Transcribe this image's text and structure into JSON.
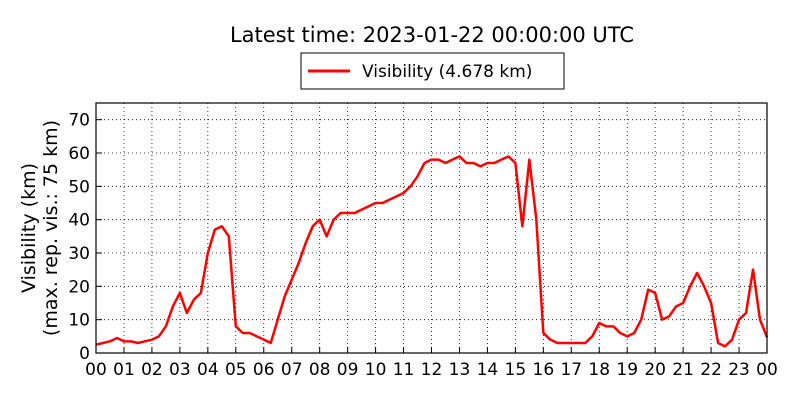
{
  "chart_data": {
    "type": "line",
    "title": "Latest time: 2023-01-22 00:00:00 UTC",
    "ylabel": [
      "Visibility (km)",
      "(max. rep. vis.: 75 km)"
    ],
    "x": [
      0,
      0.25,
      0.5,
      0.75,
      1,
      1.25,
      1.5,
      1.75,
      2,
      2.25,
      2.5,
      2.75,
      3,
      3.25,
      3.5,
      3.75,
      4,
      4.25,
      4.5,
      4.75,
      5,
      5.25,
      5.5,
      5.75,
      6,
      6.25,
      6.5,
      6.75,
      7,
      7.25,
      7.5,
      7.75,
      8,
      8.25,
      8.5,
      8.75,
      9,
      9.25,
      9.5,
      9.75,
      10,
      10.25,
      10.5,
      10.75,
      11,
      11.25,
      11.5,
      11.75,
      12,
      12.25,
      12.5,
      12.75,
      13,
      13.25,
      13.5,
      13.75,
      14,
      14.25,
      14.5,
      14.75,
      15,
      15.25,
      15.5,
      15.75,
      16,
      16.25,
      16.5,
      16.75,
      17,
      17.25,
      17.5,
      17.75,
      18,
      18.25,
      18.5,
      18.75,
      19,
      19.25,
      19.5,
      19.75,
      20,
      20.25,
      20.5,
      20.75,
      21,
      21.25,
      21.5,
      21.75,
      22,
      22.25,
      22.5,
      22.75,
      23,
      23.25,
      23.5,
      23.75,
      24
    ],
    "series": [
      {
        "name": "Visibility (4.678 km)",
        "color": "#ff0000",
        "values": [
          2.5,
          3,
          3.5,
          4.5,
          3.5,
          3.5,
          3,
          3.5,
          4,
          5,
          8,
          14,
          18,
          12,
          16,
          18,
          30,
          37,
          38,
          35,
          8,
          6,
          6,
          5,
          4,
          3,
          10,
          17,
          22,
          27,
          33,
          38,
          40,
          35,
          40,
          42,
          42,
          42,
          43,
          44,
          45,
          45,
          46,
          47,
          48,
          50,
          53,
          57,
          58,
          58,
          57,
          58,
          59,
          57,
          57,
          56,
          57,
          57,
          58,
          59,
          57,
          38,
          58,
          40,
          6,
          4,
          3,
          3,
          3,
          3,
          3,
          5,
          9,
          8,
          8,
          6,
          5,
          6,
          10,
          19,
          18,
          10,
          11,
          14,
          15,
          20,
          24,
          20,
          15,
          3,
          2,
          4,
          10,
          12,
          25,
          10,
          4.7
        ]
      }
    ],
    "xlim": [
      0,
      24
    ],
    "xticks": [
      {
        "value": 0,
        "label": "00"
      },
      {
        "value": 1,
        "label": "01"
      },
      {
        "value": 2,
        "label": "02"
      },
      {
        "value": 3,
        "label": "03"
      },
      {
        "value": 4,
        "label": "04"
      },
      {
        "value": 5,
        "label": "05"
      },
      {
        "value": 6,
        "label": "06"
      },
      {
        "value": 7,
        "label": "07"
      },
      {
        "value": 8,
        "label": "08"
      },
      {
        "value": 9,
        "label": "09"
      },
      {
        "value": 10,
        "label": "10"
      },
      {
        "value": 11,
        "label": "11"
      },
      {
        "value": 12,
        "label": "12"
      },
      {
        "value": 13,
        "label": "13"
      },
      {
        "value": 14,
        "label": "14"
      },
      {
        "value": 15,
        "label": "15"
      },
      {
        "value": 16,
        "label": "16"
      },
      {
        "value": 17,
        "label": "17"
      },
      {
        "value": 18,
        "label": "18"
      },
      {
        "value": 19,
        "label": "19"
      },
      {
        "value": 20,
        "label": "20"
      },
      {
        "value": 21,
        "label": "21"
      },
      {
        "value": 22,
        "label": "22"
      },
      {
        "value": 23,
        "label": "23"
      },
      {
        "value": 24,
        "label": "00"
      }
    ],
    "ylim": [
      0,
      75
    ],
    "yticks": [
      0,
      10,
      20,
      30,
      40,
      50,
      60,
      70
    ],
    "grid": true
  }
}
